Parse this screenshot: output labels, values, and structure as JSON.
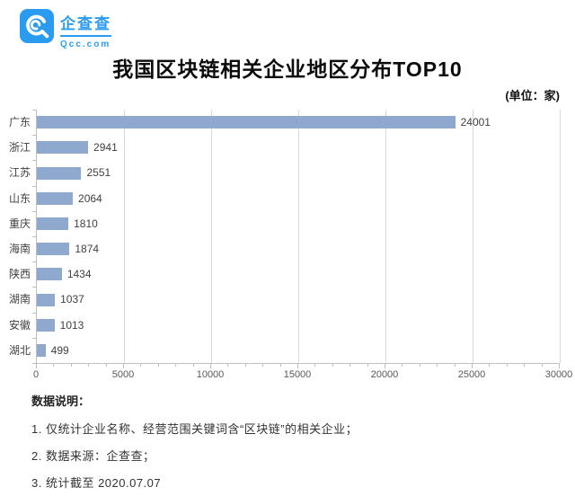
{
  "brand": {
    "name": "企查查",
    "domain": "Qcc.com",
    "color": "#2b9bf0"
  },
  "title": "我国区块链相关企业地区分布TOP10",
  "unit_note": "(单位：家)",
  "chart_data": {
    "type": "bar",
    "orientation": "horizontal",
    "title": "我国区块链相关企业地区分布TOP10",
    "unit": "家",
    "categories": [
      "广东",
      "浙江",
      "江苏",
      "山东",
      "重庆",
      "海南",
      "陕西",
      "湖南",
      "安徽",
      "湖北"
    ],
    "values": [
      24001,
      2941,
      2551,
      2064,
      1810,
      1874,
      1434,
      1037,
      1013,
      499
    ],
    "value_labels": [
      "24001",
      "2941",
      "2551",
      "2064",
      "1810",
      "1874",
      "1434",
      "1037",
      "1013",
      "499"
    ],
    "xlim": [
      0,
      30000
    ],
    "x_major_ticks": [
      0,
      5000,
      10000,
      15000,
      20000,
      25000,
      30000
    ],
    "x_tick_labels": [
      "0",
      "5000",
      "10000",
      "15000",
      "20000",
      "25000",
      "30000"
    ],
    "x_minor_step": 1000,
    "grid": true,
    "legend": false,
    "bar_color": "#8fa8ce",
    "grid_color": "#d9d9d9",
    "axis_color": "#bfbfbf",
    "label_color": "#404040"
  },
  "footer": {
    "heading": "数据说明：",
    "lines": [
      "1. 仅统计企业名称、经营范围关键词含“区块链”的相关企业；",
      "2. 数据来源：企查查；",
      "3. 统计截至 2020.07.07"
    ]
  }
}
